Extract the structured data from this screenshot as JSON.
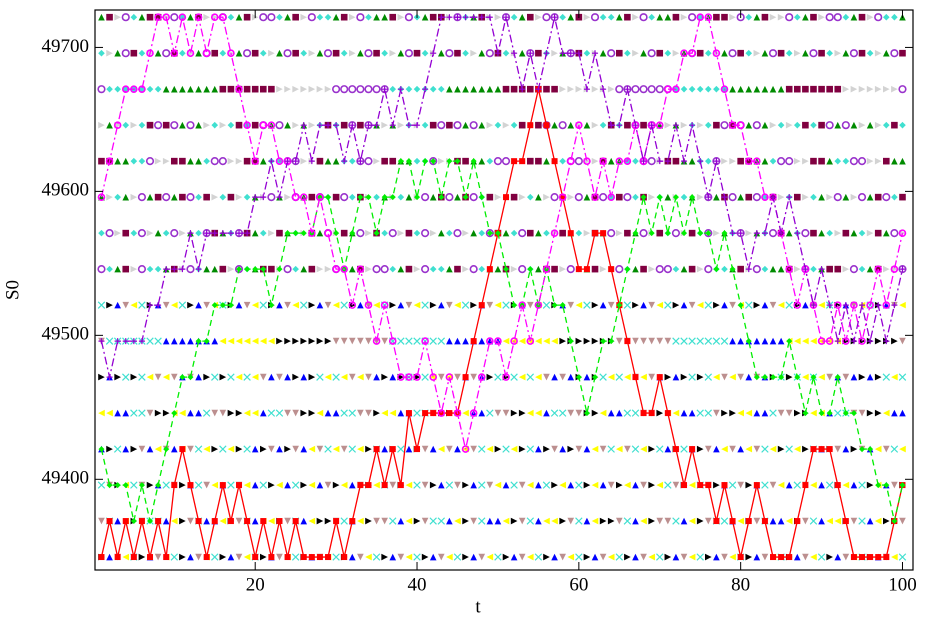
{
  "chart_data": {
    "type": "line",
    "x_label": "t",
    "y_label": "S0",
    "xlim": [
      0.2,
      101.3
    ],
    "ylim": [
      49337,
      49726
    ],
    "xticks": [
      20,
      40,
      60,
      80,
      100
    ],
    "yticks": [
      49400,
      49500,
      49600,
      49700
    ],
    "grid": false,
    "x": [
      1,
      2,
      3,
      4,
      5,
      6,
      7,
      8,
      9,
      10,
      11,
      12,
      13,
      14,
      15,
      16,
      17,
      18,
      19,
      20,
      21,
      22,
      23,
      24,
      25,
      26,
      27,
      28,
      29,
      30,
      31,
      32,
      33,
      34,
      35,
      36,
      37,
      38,
      39,
      40,
      41,
      42,
      43,
      44,
      45,
      46,
      47,
      48,
      49,
      50,
      51,
      52,
      53,
      54,
      55,
      56,
      57,
      58,
      59,
      60,
      61,
      62,
      63,
      64,
      65,
      66,
      67,
      68,
      69,
      70,
      71,
      72,
      73,
      74,
      75,
      76,
      77,
      78,
      79,
      80,
      81,
      82,
      83,
      84,
      85,
      86,
      87,
      88,
      89,
      90,
      91,
      92,
      93,
      94,
      95,
      96,
      97,
      98,
      99,
      100
    ],
    "levels": [
      49346,
      49371,
      49396,
      49421,
      49446,
      49471,
      49496,
      49521,
      49546,
      49571,
      49596,
      49621,
      49646,
      49671,
      49696,
      49721
    ],
    "background_markers": [
      {
        "color": "#000000",
        "shape": "tri-right"
      },
      {
        "color": "#0000ff",
        "shape": "tri-up"
      },
      {
        "color": "#bc8f8f",
        "shape": "tri-down"
      },
      {
        "color": "#ffff00",
        "shape": "tri-left"
      },
      {
        "color": "#40e0d0",
        "shape": "x"
      },
      {
        "color": "#008b00",
        "shape": "tri-up"
      },
      {
        "color": "#9932cc",
        "shape": "circle"
      },
      {
        "color": "#800040",
        "shape": "square"
      },
      {
        "color": "#40e0d0",
        "shape": "diamond"
      },
      {
        "color": "#d3d3d3",
        "shape": "tri-right"
      }
    ],
    "series": [
      {
        "color": "#ff0000",
        "marker": "square",
        "dash": "solid",
        "values": [
          49346,
          49371,
          49346,
          49371,
          49346,
          49371,
          49346,
          49371,
          49346,
          49396,
          49421,
          49396,
          49371,
          49346,
          49371,
          49396,
          49371,
          49396,
          49371,
          49346,
          49371,
          49346,
          49371,
          49346,
          49371,
          49346,
          49346,
          49346,
          49346,
          49371,
          49346,
          49371,
          49396,
          49396,
          49421,
          49396,
          49421,
          49396,
          49446,
          49421,
          49446,
          49446,
          49446,
          49446,
          49446,
          49471,
          49496,
          49521,
          49546,
          49571,
          49596,
          49621,
          49621,
          49646,
          49671,
          49646,
          49621,
          49596,
          49571,
          49546,
          49546,
          49571,
          49571,
          49546,
          49521,
          49496,
          49471,
          49446,
          49446,
          49471,
          49446,
          49421,
          49396,
          49421,
          49396,
          49396,
          49371,
          49396,
          49371,
          49346,
          49371,
          49396,
          49371,
          49346,
          49346,
          49346,
          49371,
          49396,
          49421,
          49421,
          49421,
          49396,
          49371,
          49346,
          49346,
          49346,
          49346,
          49346,
          49371,
          49396
        ]
      },
      {
        "color": "#00ee00",
        "marker": "diamond",
        "dash": "dashed",
        "values": [
          49421,
          49396,
          49396,
          49396,
          49371,
          49396,
          49371,
          49396,
          49421,
          49446,
          49471,
          49471,
          49496,
          49496,
          49521,
          49521,
          49521,
          49546,
          49546,
          49546,
          49546,
          49521,
          49546,
          49571,
          49571,
          49571,
          49571,
          49596,
          49596,
          49571,
          49546,
          49571,
          49596,
          49596,
          49571,
          49596,
          49596,
          49621,
          49621,
          49596,
          49621,
          49621,
          49596,
          49621,
          49621,
          49596,
          49621,
          49596,
          49571,
          49571,
          49546,
          49521,
          49521,
          49546,
          49521,
          49546,
          49521,
          49521,
          49496,
          49471,
          49446,
          49471,
          49496,
          49496,
          49521,
          49546,
          49571,
          49596,
          49571,
          49596,
          49571,
          49596,
          49571,
          49596,
          49571,
          49571,
          49546,
          49571,
          49546,
          49521,
          49496,
          49471,
          49471,
          49471,
          49471,
          49496,
          49471,
          49446,
          49471,
          49446,
          49446,
          49471,
          49446,
          49446,
          49421,
          49421,
          49396,
          49396,
          49371,
          49396
        ]
      },
      {
        "color": "#ff00ff",
        "marker": "circle",
        "dash": "dashdot",
        "values": [
          49596,
          49621,
          49646,
          49671,
          49671,
          49671,
          49696,
          49721,
          49721,
          49696,
          49721,
          49696,
          49721,
          49696,
          49721,
          49721,
          49696,
          49671,
          49646,
          49621,
          49646,
          49646,
          49621,
          49621,
          49596,
          49596,
          49571,
          49596,
          49571,
          49546,
          49546,
          49521,
          49546,
          49521,
          49496,
          49521,
          49496,
          49471,
          49471,
          49471,
          49496,
          49471,
          49446,
          49471,
          49446,
          49421,
          49446,
          49471,
          49496,
          49496,
          49471,
          49496,
          49521,
          49496,
          49521,
          49546,
          49571,
          49596,
          49621,
          49646,
          49621,
          49596,
          49621,
          49596,
          49621,
          49621,
          49646,
          49621,
          49646,
          49646,
          49671,
          49671,
          49696,
          49696,
          49721,
          49721,
          49696,
          49671,
          49646,
          49646,
          49621,
          49621,
          49596,
          49596,
          49571,
          49546,
          49521,
          49546,
          49521,
          49496,
          49496,
          49521,
          49496,
          49521,
          49496,
          49521,
          49546,
          49521,
          49546,
          49571
        ]
      },
      {
        "color": "#9400d3",
        "marker": "plus",
        "dash": "dashdot",
        "values": [
          49496,
          49471,
          49496,
          49496,
          49496,
          49496,
          49521,
          49521,
          49546,
          49546,
          49546,
          49571,
          49546,
          49571,
          49571,
          49571,
          49571,
          49571,
          49571,
          49596,
          49596,
          49621,
          49596,
          49621,
          49621,
          49646,
          49621,
          49646,
          49646,
          49646,
          49621,
          49646,
          49621,
          49646,
          49646,
          49671,
          49646,
          49671,
          49646,
          49646,
          49671,
          49696,
          49721,
          49721,
          49721,
          49721,
          49721,
          49721,
          49721,
          49696,
          49721,
          49696,
          49671,
          49696,
          49671,
          49696,
          49721,
          49696,
          49696,
          49696,
          49671,
          49696,
          49671,
          49646,
          49646,
          49671,
          49646,
          49621,
          49646,
          49621,
          49621,
          49646,
          49621,
          49646,
          49621,
          49596,
          49621,
          49596,
          49571,
          49571,
          49546,
          49571,
          49571,
          49596,
          49571,
          49596,
          49571,
          49546,
          49521,
          49546,
          49521,
          49496,
          49521,
          49496,
          49521,
          49496,
          49521,
          49496,
          49521,
          49546
        ]
      }
    ]
  }
}
